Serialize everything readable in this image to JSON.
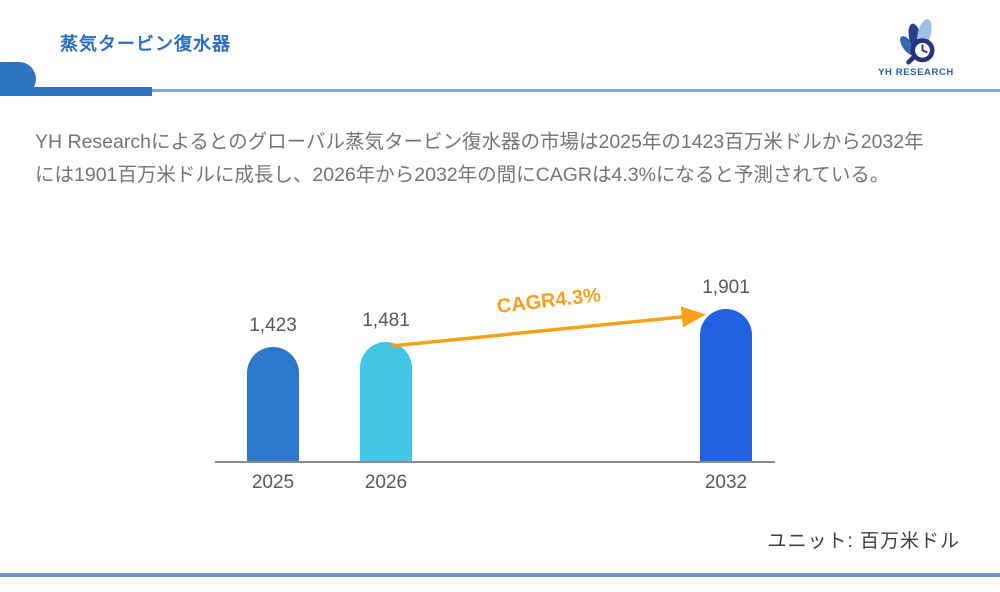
{
  "header": {
    "title": "蒸気タービン復水器",
    "logo_text": "YH RESEARCH"
  },
  "summary": {
    "line1": "YH Researchによるとのグローバル蒸気タービン復水器の市場は2025年の1423百万米ドルから2032年",
    "line2": "には1901百万米ドルに成長し、2026年から2032年の間にCAGRは4.3%になると予測されている。"
  },
  "chart_data": {
    "type": "bar",
    "title": "",
    "categories": [
      "2025",
      "2026",
      "2032"
    ],
    "values": [
      1423,
      1481,
      1901
    ],
    "value_labels": [
      "1,423",
      "1,481",
      "1,901"
    ],
    "bar_colors": [
      "#2E78CC",
      "#45C5E4",
      "#2361E0"
    ],
    "annotation": "CAGR4.3%",
    "annotation_color": "#F7A01E",
    "arrow_color": "#F7A11A",
    "axis_color": "#8a8a8a",
    "label_color": "#595959",
    "unit_label": "ユニット: 百万米ドル",
    "ylabel": "百万米ドル",
    "grid": false,
    "legend": false
  }
}
